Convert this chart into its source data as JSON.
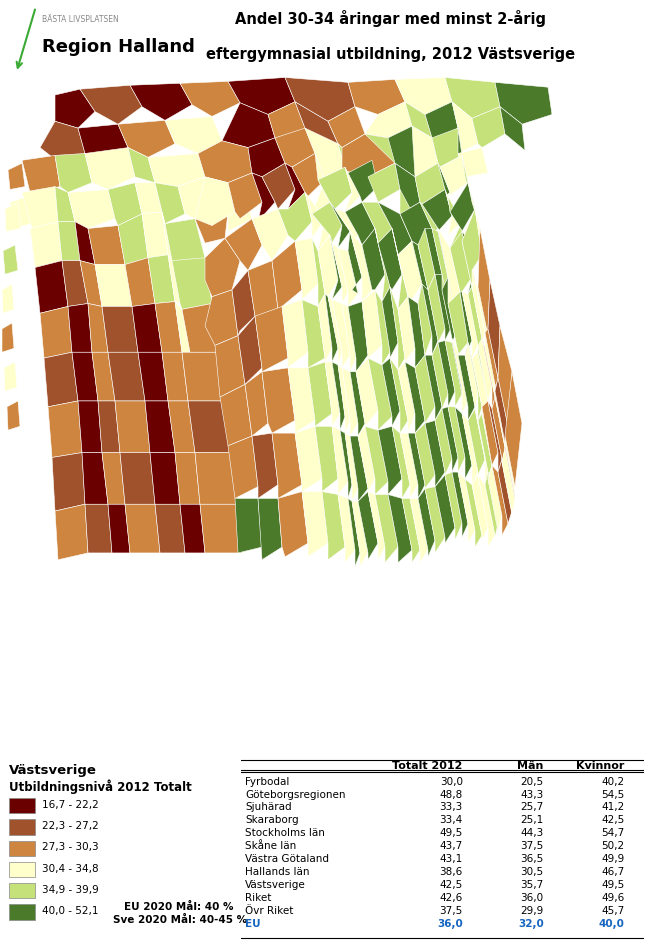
{
  "title_line1": "Andel 30-34 åringar med minst 2-årig",
  "title_line2": "eftergymnasial utbildning, 2012 Västsverige",
  "logo_text": "Region Halland",
  "logo_sub": "BÄSTA LIVSPLATSEN",
  "legend_title1": "Västsverige",
  "legend_title2": "Utbildningsnivå 2012 Totalt",
  "legend_items": [
    {
      "range": "16,7 - 22,2",
      "color": "#6b0000"
    },
    {
      "range": "22,3 - 27,2",
      "color": "#a0522d"
    },
    {
      "range": "27,3 - 30,3",
      "color": "#cd853f"
    },
    {
      "range": "30,4 - 34,8",
      "color": "#ffffcc"
    },
    {
      "range": "34,9 - 39,9",
      "color": "#c5e17a"
    },
    {
      "range": "40,0 - 52,1",
      "color": "#4a7a2a"
    }
  ],
  "eu_note1": "EU 2020 Mål: 40 %",
  "eu_note2": "Sve 2020 Mål: 40-45 %",
  "table_headers": [
    "",
    "Totalt 2012",
    "Män",
    "Kvinnor"
  ],
  "table_rows": [
    {
      "label": "Fyrbodal",
      "totalt": "30,0",
      "man": "20,5",
      "kvinnor": "40,2",
      "bold": false,
      "blue": false
    },
    {
      "label": "Göteborgsregionen",
      "totalt": "48,8",
      "man": "43,3",
      "kvinnor": "54,5",
      "bold": false,
      "blue": false
    },
    {
      "label": "Sjuhärad",
      "totalt": "33,3",
      "man": "25,7",
      "kvinnor": "41,2",
      "bold": false,
      "blue": false
    },
    {
      "label": "Skaraborg",
      "totalt": "33,4",
      "man": "25,1",
      "kvinnor": "42,5",
      "bold": false,
      "blue": false
    },
    {
      "label": "Stockholms län",
      "totalt": "49,5",
      "man": "44,3",
      "kvinnor": "54,7",
      "bold": false,
      "blue": false
    },
    {
      "label": "Skåne län",
      "totalt": "43,7",
      "man": "37,5",
      "kvinnor": "50,2",
      "bold": false,
      "blue": false
    },
    {
      "label": "Västra Götaland",
      "totalt": "43,1",
      "man": "36,5",
      "kvinnor": "49,9",
      "bold": false,
      "blue": false
    },
    {
      "label": "Hallands län",
      "totalt": "38,6",
      "man": "30,5",
      "kvinnor": "46,7",
      "bold": false,
      "blue": false
    },
    {
      "label": "Västsverige",
      "totalt": "42,5",
      "man": "35,7",
      "kvinnor": "49,5",
      "bold": false,
      "blue": false
    },
    {
      "label": "Riket",
      "totalt": "42,6",
      "man": "36,0",
      "kvinnor": "49,6",
      "bold": false,
      "blue": false
    },
    {
      "label": "Övr Riket",
      "totalt": "37,5",
      "man": "29,9",
      "kvinnor": "45,7",
      "bold": false,
      "blue": false
    },
    {
      "label": "EU",
      "totalt": "36,0",
      "man": "32,0",
      "kvinnor": "40,0",
      "bold": true,
      "blue": true
    }
  ],
  "bg_color": "#ffffff"
}
